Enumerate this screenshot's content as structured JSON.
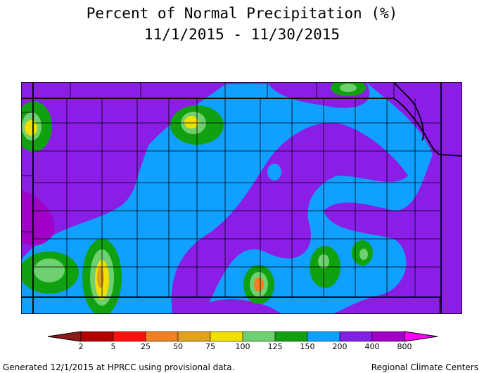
{
  "title": "Percent of Normal Precipitation (%)",
  "subtitle": "11/1/2015 - 11/30/2015",
  "legend": {
    "ticks": [
      2,
      5,
      25,
      50,
      75,
      100,
      125,
      150,
      200,
      400,
      800
    ],
    "colors": [
      "#8b1a1a",
      "#b00000",
      "#ff1010",
      "#f08020",
      "#e0a020",
      "#f0e000",
      "#70d070",
      "#10a010",
      "#10a0ff",
      "#8020e0",
      "#a000c8",
      "#ff00ff"
    ]
  },
  "footer": {
    "left": "Generated 12/1/2015 at HPRCC using provisional data.",
    "right": "Regional Climate Centers"
  }
}
